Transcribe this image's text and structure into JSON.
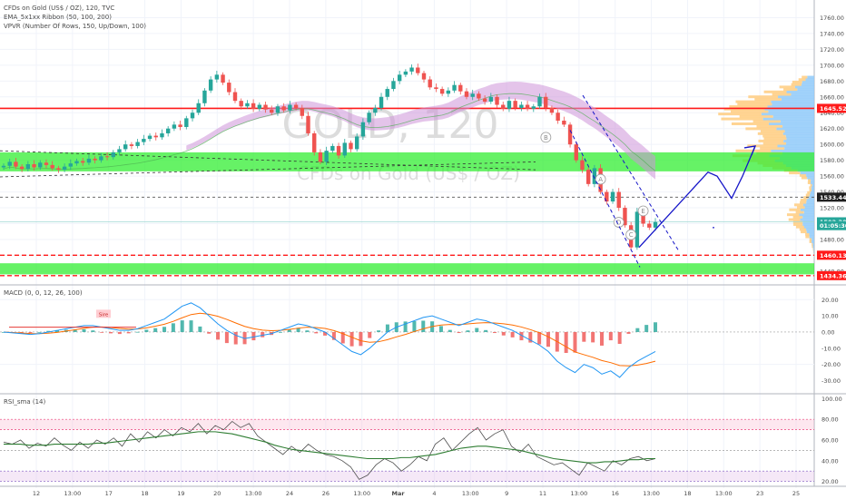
{
  "legend": {
    "symbol_line": "CFDs on Gold (US$ / OZ), 120, TVC",
    "ema_line": "EMA_5x1xx Ribbon (50, 100, 200)",
    "vpvr_line": "VPVR (Number Of Rows, 150, Up/Down, 100)",
    "macd_line": "MACD (0, 0, 12, 26, 100)",
    "rsi_line": "RSI_sma (14)"
  },
  "watermark": {
    "ticker": "GOLD, 120",
    "name": "CFDs on Gold (US$ / OZ)"
  },
  "colors": {
    "zone": "#33ee33",
    "resistance": "#ff1a1a",
    "up": "#26a69a",
    "down": "#ef5350",
    "projection": "#1515c8",
    "ribbon": "#ce93d8",
    "vp_up": "#90caf9",
    "vp_down": "#ffcc80"
  },
  "chart_data": [
    {
      "type": "candlestick",
      "title": "CFDs on Gold (US$ / OZ), 120, TVC",
      "ylim": [
        1425,
        1780
      ],
      "price_axis_ticks": [
        "1760.00",
        "1740.00",
        "1720.00",
        "1700.00",
        "1680.00",
        "1660.00",
        "1640.00",
        "1620.00",
        "1600.00",
        "1580.00",
        "1560.00",
        "1540.00",
        "1520.00",
        "1500.00",
        "1480.00",
        "1460.00",
        "1440.00"
      ],
      "price_labels": [
        {
          "value": 1645.52,
          "label": "1645.52",
          "color": "#ff1a1a"
        },
        {
          "value": 1533.44,
          "label": "1533.44",
          "color": "#202020"
        },
        {
          "value": 1502.3,
          "label": "1502.30",
          "color": "#26a69a"
        },
        {
          "value": 1497.5,
          "label": "01:05:36",
          "color": "#26a69a"
        },
        {
          "value": 1460.13,
          "label": "1460.13",
          "color": "#ff1a1a"
        },
        {
          "value": 1434.36,
          "label": "1434.36",
          "color": "#ff1a1a"
        }
      ],
      "time_axis_ticks": [
        "12",
        "13:00",
        "17",
        "18",
        "19",
        "20",
        "13:00",
        "24",
        "26",
        "13:00",
        "Mar",
        "4",
        "13:00",
        "9",
        "11",
        "13:00",
        "16",
        "13:00",
        "18",
        "13:00",
        "23",
        "25"
      ],
      "close_series": [
        1573,
        1578,
        1572,
        1569,
        1575,
        1571,
        1577,
        1574,
        1570,
        1568,
        1572,
        1576,
        1579,
        1577,
        1582,
        1580,
        1585,
        1584,
        1590,
        1594,
        1600,
        1598,
        1603,
        1607,
        1611,
        1609,
        1614,
        1620,
        1625,
        1622,
        1633,
        1640,
        1652,
        1668,
        1682,
        1688,
        1678,
        1666,
        1655,
        1648,
        1652,
        1645,
        1650,
        1644,
        1640,
        1648,
        1643,
        1650,
        1646,
        1636,
        1614,
        1590,
        1578,
        1592,
        1598,
        1586,
        1602,
        1594,
        1610,
        1628,
        1640,
        1646,
        1660,
        1670,
        1680,
        1688,
        1692,
        1697,
        1690,
        1682,
        1672,
        1670,
        1664,
        1668,
        1675,
        1667,
        1660,
        1664,
        1658,
        1654,
        1660,
        1650,
        1645,
        1655,
        1646,
        1650,
        1645,
        1648,
        1660,
        1646,
        1640,
        1630,
        1625,
        1600,
        1580,
        1568,
        1550,
        1570,
        1540,
        1528,
        1540,
        1520,
        1498,
        1470,
        1515,
        1500,
        1495,
        1502
      ],
      "support_resistance": {
        "resistance_line": 1645.52,
        "upper_zone": [
          1566,
          1590
        ],
        "lower_zone": [
          1436,
          1450
        ],
        "lower_red_dashed": [
          1460.13,
          1434.36
        ],
        "grey_dashed": 1533.44,
        "teal_line": 1502.3
      },
      "wave_labels": [
        "A",
        "B",
        "C",
        "D",
        "E"
      ],
      "projection_path": [
        1470,
        1565,
        1560,
        1532,
        1560,
        1598
      ],
      "volume_profile": "up/down histogram on price axis"
    },
    {
      "type": "macd",
      "title": "MACD (0, 0, 12, 26, 100)",
      "ylim": [
        -37,
        28
      ],
      "axis_ticks": [
        "20.00",
        "10.00",
        "0.00",
        "-10.00",
        "-20.00",
        "-30.00"
      ],
      "annotation": "Sire",
      "macd": [
        0,
        -0.5,
        -1,
        -1.5,
        -1,
        0,
        1,
        2,
        3,
        4,
        4,
        3,
        2,
        1,
        1,
        2,
        4,
        6,
        8,
        12,
        16,
        18,
        15,
        10,
        5,
        1,
        -2,
        -4,
        -3,
        -2,
        -1,
        1,
        3,
        5,
        4,
        2,
        0,
        -4,
        -8,
        -12,
        -14,
        -10,
        -5,
        0,
        3,
        5,
        7,
        9,
        10,
        8,
        6,
        4,
        6,
        8,
        7,
        5,
        3,
        1,
        -2,
        -5,
        -8,
        -12,
        -18,
        -22,
        -25,
        -20,
        -22,
        -26,
        -24,
        -28,
        -22,
        -18,
        -15,
        -12
      ],
      "signal": [
        0,
        -0.3,
        -0.6,
        -0.9,
        -1,
        -0.7,
        -0.2,
        0.6,
        1.4,
        2.3,
        3,
        3.1,
        2.8,
        2.2,
        1.8,
        1.9,
        2.6,
        3.6,
        4.8,
        6.6,
        8.8,
        10.8,
        11.6,
        11,
        9.7,
        7.8,
        5.6,
        3.5,
        2.1,
        1.2,
        0.8,
        1,
        1.6,
        2.4,
        3,
        2.8,
        2.2,
        0.9,
        -1,
        -3.2,
        -5.4,
        -6.3,
        -6,
        -4.7,
        -3,
        -1.5,
        0.3,
        2,
        3.4,
        4.3,
        4.7,
        4.6,
        5,
        5.5,
        5.8,
        5.6,
        5.1,
        4.3,
        3.1,
        1.5,
        -0.4,
        -2.9,
        -5.9,
        -9.1,
        -12.3,
        -14,
        -15.6,
        -17.6,
        -18.9,
        -20.7,
        -20.9,
        -20.4,
        -19.4,
        -18
      ]
    },
    {
      "type": "rsi",
      "title": "RSI_sma (14)",
      "ylim": [
        17,
        103
      ],
      "axis_ticks": [
        "100.00",
        "80.00",
        "60.00",
        "40.00",
        "20.00"
      ],
      "bands": [
        20,
        30,
        50,
        70,
        80
      ],
      "rsi": [
        58,
        56,
        60,
        52,
        57,
        54,
        62,
        55,
        50,
        58,
        52,
        60,
        56,
        62,
        54,
        66,
        58,
        68,
        62,
        70,
        64,
        72,
        68,
        76,
        66,
        74,
        70,
        78,
        72,
        76,
        64,
        58,
        52,
        46,
        54,
        48,
        56,
        50,
        46,
        44,
        40,
        34,
        22,
        26,
        36,
        42,
        38,
        30,
        36,
        44,
        40,
        56,
        62,
        50,
        58,
        66,
        72,
        60,
        66,
        70,
        54,
        48,
        56,
        44,
        40,
        36,
        38,
        32,
        26,
        38,
        34,
        30,
        40,
        36,
        42,
        44,
        40,
        42
      ],
      "rsi_sma": [
        56,
        56,
        56,
        55,
        55,
        55,
        56,
        56,
        56,
        56,
        56,
        57,
        57,
        58,
        59,
        60,
        61,
        62,
        63,
        64,
        65,
        66,
        67,
        68,
        68,
        68,
        67,
        66,
        64,
        62,
        60,
        58,
        55,
        53,
        51,
        50,
        49,
        48,
        47,
        46,
        45,
        44,
        43,
        42,
        42,
        42,
        42,
        43,
        43,
        44,
        45,
        46,
        48,
        50,
        52,
        53,
        54,
        54,
        53,
        52,
        51,
        50,
        48,
        46,
        44,
        42,
        41,
        40,
        39,
        38,
        38,
        39,
        39,
        40,
        41,
        41,
        42,
        42
      ]
    }
  ]
}
